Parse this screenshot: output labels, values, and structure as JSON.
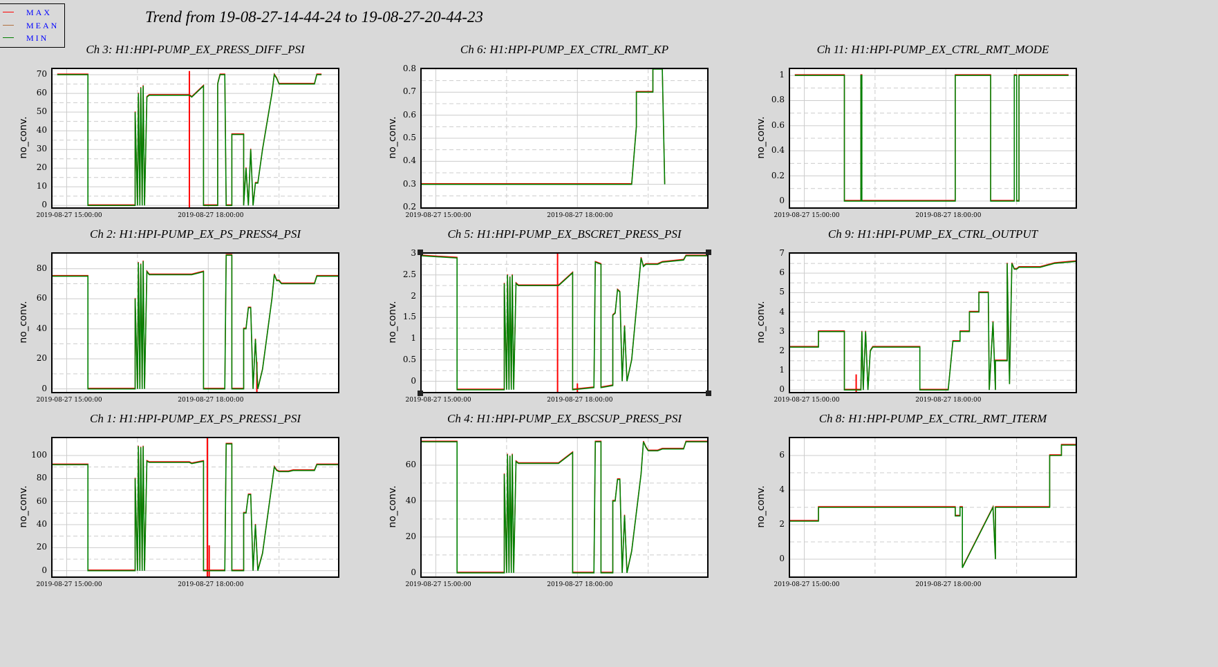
{
  "title": "Trend from 19-08-27-14-44-24 to 19-08-27-20-44-23",
  "legend": [
    {
      "label": "MAX",
      "color": "#ff0000"
    },
    {
      "label": "MEAN",
      "color": "#b0703f"
    },
    {
      "label": "MIN",
      "color": "#008000"
    }
  ],
  "colors": {
    "max": "#ff0000",
    "min": "#008000",
    "grid": "#cccccc",
    "background": "#d9d9d9"
  },
  "x_axis": {
    "start": "19-08-27-14-44-24",
    "end": "19-08-27-20-44-23",
    "tick_labels": [
      "2019-08-27 15:00:00",
      "2019-08-27 18:00:00"
    ],
    "tick_hours": [
      15.0,
      18.0
    ],
    "minor_hours": [
      16.5,
      19.5
    ],
    "range_hours": [
      14.7,
      20.75
    ]
  },
  "chart_data": [
    {
      "type": "line",
      "title": "Ch 3: H1:HPI-PUMP_EX_PRESS_DIFF_PSI",
      "ylabel": "no_conv.",
      "ylim": [
        -1,
        73
      ],
      "yticks": [
        0,
        10,
        20,
        30,
        40,
        50,
        60,
        70
      ],
      "ytick_labels": [
        "0",
        "10",
        "20",
        "30",
        "40",
        "50",
        "60",
        "70"
      ],
      "x": [
        14.8,
        15.45,
        15.45,
        16.45,
        16.45,
        16.5,
        16.52,
        16.55,
        16.57,
        16.6,
        16.62,
        16.65,
        16.7,
        16.75,
        17.6,
        17.65,
        17.9,
        17.9,
        18.2,
        18.2,
        18.25,
        18.35,
        18.38,
        18.5,
        18.5,
        18.5,
        18.75,
        18.75,
        18.8,
        18.85,
        18.9,
        18.95,
        19.0,
        19.05,
        19.15,
        19.35,
        19.4,
        19.45,
        19.5,
        19.55,
        19.7,
        19.8,
        20.25,
        20.3,
        20.4
      ],
      "y": [
        70,
        70,
        0,
        0,
        50,
        0,
        60,
        0,
        63,
        0,
        64,
        0,
        58,
        59,
        59,
        58,
        64,
        0,
        0,
        65,
        70,
        70,
        0,
        0,
        38,
        38,
        38,
        0,
        20,
        0,
        30,
        0,
        12,
        12,
        30,
        60,
        70,
        68,
        65,
        65,
        65,
        65,
        65,
        70,
        70
      ],
      "max_spikes": [
        [
          17.6,
          72
        ]
      ]
    },
    {
      "type": "line",
      "title": "Ch 6: H1:HPI-PUMP_EX_CTRL_RMT_KP",
      "ylabel": "no_conv.",
      "ylim": [
        0.2,
        0.8
      ],
      "yticks": [
        0.2,
        0.3,
        0.4,
        0.5,
        0.6,
        0.7,
        0.8
      ],
      "ytick_labels": [
        "0.2",
        "0.3",
        "0.4",
        "0.5",
        "0.6",
        "0.7",
        "0.8"
      ],
      "x": [
        14.7,
        15.0,
        16.0,
        18.0,
        19.15,
        19.25,
        19.25,
        19.6,
        19.6,
        19.8,
        19.85
      ],
      "y": [
        0.3,
        0.3,
        0.3,
        0.3,
        0.3,
        0.55,
        0.7,
        0.7,
        0.8,
        0.8,
        0.3
      ],
      "max_spikes": []
    },
    {
      "type": "line",
      "title": "Ch 11: H1:HPI-PUMP_EX_CTRL_RMT_MODE",
      "ylabel": "no_conv.",
      "ylim": [
        -0.05,
        1.05
      ],
      "yticks": [
        0,
        0.2,
        0.4,
        0.6,
        0.8,
        1
      ],
      "ytick_labels": [
        "0",
        "0.2",
        "0.4",
        "0.6",
        "0.8",
        "1"
      ],
      "x": [
        14.8,
        15.85,
        15.85,
        16.2,
        16.2,
        16.22,
        16.22,
        18.2,
        18.2,
        18.95,
        18.95,
        19.45,
        19.45,
        19.5,
        19.5,
        19.55,
        19.55,
        20.6
      ],
      "y": [
        1,
        1,
        0,
        0,
        1,
        1,
        0,
        0,
        1,
        1,
        0,
        0,
        1,
        1,
        0,
        0,
        1,
        1
      ],
      "max_spikes": []
    },
    {
      "type": "line",
      "title": "Ch 2: H1:HPI-PUMP_EX_PS_PRESS4_PSI",
      "ylabel": "no_conv.",
      "ylim": [
        -2,
        90
      ],
      "yticks": [
        0,
        20,
        40,
        60,
        80
      ],
      "ytick_labels": [
        "0",
        "20",
        "40",
        "60",
        "80"
      ],
      "x": [
        14.7,
        15.45,
        15.45,
        16.45,
        16.45,
        16.5,
        16.52,
        16.55,
        16.57,
        16.6,
        16.62,
        16.65,
        16.7,
        16.75,
        17.6,
        17.65,
        17.9,
        17.9,
        18.35,
        18.38,
        18.5,
        18.5,
        18.75,
        18.75,
        18.8,
        18.85,
        18.9,
        18.95,
        19.0,
        19.05,
        19.15,
        19.35,
        19.4,
        19.45,
        19.5,
        19.55,
        19.7,
        19.8,
        20.25,
        20.3,
        20.75
      ],
      "y": [
        75,
        75,
        0,
        0,
        60,
        0,
        84,
        0,
        83,
        0,
        85,
        0,
        78,
        76,
        76,
        76,
        78,
        0,
        0,
        89,
        89,
        0,
        0,
        40,
        40,
        54,
        54,
        0,
        33,
        0,
        13,
        60,
        76,
        72,
        72,
        70,
        70,
        70,
        70,
        75,
        75
      ],
      "max_spikes": [
        [
          19.03,
          18
        ]
      ]
    },
    {
      "type": "line",
      "title": "Ch 5: H1:HPI-PUMP_EX_BSCRET_PRESS_PSI",
      "ylabel": "no_conv.",
      "ylim": [
        -0.25,
        3.0
      ],
      "yticks": [
        0,
        0.5,
        1,
        1.5,
        2,
        2.5,
        3
      ],
      "ytick_labels": [
        "0",
        "0.5",
        "1",
        "1.5",
        "2",
        "2.5",
        "3"
      ],
      "x": [
        14.7,
        15.45,
        15.45,
        16.45,
        16.45,
        16.5,
        16.52,
        16.55,
        16.57,
        16.6,
        16.62,
        16.65,
        16.7,
        16.75,
        17.6,
        17.65,
        17.9,
        17.9,
        18.35,
        18.38,
        18.5,
        18.5,
        18.75,
        18.75,
        18.8,
        18.85,
        18.9,
        18.95,
        19.0,
        19.05,
        19.15,
        19.35,
        19.4,
        19.45,
        19.5,
        19.55,
        19.7,
        19.8,
        20.25,
        20.3,
        20.75
      ],
      "y": [
        2.95,
        2.9,
        -0.2,
        -0.2,
        2.3,
        -0.2,
        2.5,
        -0.2,
        2.45,
        -0.2,
        2.5,
        -0.2,
        2.3,
        2.25,
        2.25,
        2.3,
        2.55,
        -0.2,
        -0.15,
        2.8,
        2.75,
        -0.15,
        -0.1,
        1.55,
        1.6,
        2.15,
        2.1,
        0.0,
        1.3,
        0.0,
        0.5,
        2.9,
        2.7,
        2.75,
        2.75,
        2.75,
        2.75,
        2.8,
        2.85,
        2.95,
        2.95
      ],
      "max_spikes": [
        [
          17.58,
          3.0
        ],
        [
          18.0,
          -0.05
        ]
      ]
    },
    {
      "type": "line",
      "title": "Ch 9: H1:HPI-PUMP_EX_CTRL_OUTPUT",
      "ylabel": "no_conv.",
      "ylim": [
        -0.1,
        7
      ],
      "yticks": [
        0,
        1,
        2,
        3,
        4,
        5,
        6,
        7
      ],
      "ytick_labels": [
        "0",
        "1",
        "2",
        "3",
        "4",
        "5",
        "6",
        "7"
      ],
      "x": [
        14.7,
        15.0,
        15.3,
        15.3,
        15.85,
        15.85,
        16.2,
        16.22,
        16.25,
        16.3,
        16.35,
        16.4,
        16.45,
        16.5,
        16.6,
        17.45,
        17.45,
        18.0,
        18.05,
        18.15,
        18.2,
        18.25,
        18.3,
        18.3,
        18.5,
        18.5,
        18.7,
        18.7,
        18.9,
        18.92,
        19.0,
        19.05,
        19.05,
        19.3,
        19.3,
        19.35,
        19.4,
        19.45,
        19.5,
        19.55,
        20.0,
        20.3,
        20.75
      ],
      "y": [
        2.2,
        2.2,
        2.2,
        3.0,
        3.0,
        0.0,
        0.0,
        3.0,
        0.0,
        3.0,
        0.0,
        2.0,
        2.2,
        2.2,
        2.2,
        2.2,
        0.0,
        0.0,
        0.0,
        2.5,
        2.5,
        2.5,
        2.5,
        3.0,
        3.0,
        4.0,
        4.0,
        5.0,
        5.0,
        0.0,
        3.5,
        0.0,
        1.5,
        1.5,
        6.5,
        0.3,
        6.5,
        6.2,
        6.2,
        6.3,
        6.3,
        6.5,
        6.6
      ],
      "max_spikes": [
        [
          16.1,
          0.8
        ]
      ]
    },
    {
      "type": "line",
      "title": "Ch 1: H1:HPI-PUMP_EX_PS_PRESS1_PSI",
      "ylabel": "no_conv.",
      "ylim": [
        -5,
        115
      ],
      "yticks": [
        0,
        20,
        40,
        60,
        80,
        100
      ],
      "ytick_labels": [
        "0",
        "20",
        "40",
        "60",
        "80",
        "100"
      ],
      "x": [
        14.7,
        15.45,
        15.45,
        16.45,
        16.45,
        16.5,
        16.52,
        16.55,
        16.57,
        16.6,
        16.62,
        16.65,
        16.7,
        16.75,
        17.6,
        17.65,
        17.9,
        17.9,
        18.35,
        18.38,
        18.5,
        18.5,
        18.75,
        18.75,
        18.8,
        18.85,
        18.9,
        18.95,
        19.0,
        19.05,
        19.15,
        19.35,
        19.4,
        19.45,
        19.5,
        19.55,
        19.7,
        19.8,
        20.25,
        20.3,
        20.75
      ],
      "y": [
        92,
        92,
        0,
        0,
        80,
        0,
        108,
        0,
        107,
        0,
        108,
        0,
        95,
        94,
        94,
        93,
        95,
        0,
        0,
        110,
        110,
        0,
        0,
        50,
        50,
        66,
        66,
        0,
        40,
        0,
        15,
        75,
        90,
        87,
        86,
        86,
        86,
        87,
        87,
        92,
        92
      ],
      "max_spikes": [
        [
          17.98,
          115
        ],
        [
          18.02,
          22
        ]
      ]
    },
    {
      "type": "line",
      "title": "Ch 4: H1:HPI-PUMP_EX_BSCSUP_PRESS_PSI",
      "ylabel": "no_conv.",
      "ylim": [
        -2,
        75
      ],
      "yticks": [
        0,
        20,
        40,
        60
      ],
      "ytick_labels": [
        "0",
        "20",
        "40",
        "60"
      ],
      "x": [
        14.7,
        15.45,
        15.45,
        16.45,
        16.45,
        16.5,
        16.52,
        16.55,
        16.57,
        16.6,
        16.62,
        16.65,
        16.7,
        16.75,
        17.6,
        17.65,
        17.9,
        17.9,
        18.35,
        18.38,
        18.5,
        18.5,
        18.75,
        18.75,
        18.8,
        18.85,
        18.9,
        18.95,
        19.0,
        19.05,
        19.15,
        19.35,
        19.4,
        19.45,
        19.5,
        19.55,
        19.7,
        19.8,
        20.25,
        20.3,
        20.75
      ],
      "y": [
        73,
        73,
        0,
        0,
        55,
        0,
        66,
        0,
        65,
        0,
        66,
        0,
        62,
        61,
        61,
        62,
        67,
        0,
        0,
        73,
        73,
        0,
        0,
        40,
        40,
        52,
        52,
        0,
        32,
        0,
        12,
        55,
        73,
        70,
        68,
        68,
        68,
        69,
        69,
        73,
        73
      ],
      "max_spikes": []
    },
    {
      "type": "line",
      "title": "Ch 8: H1:HPI-PUMP_EX_CTRL_RMT_ITERM",
      "ylabel": "no_conv.",
      "ylim": [
        -1,
        7
      ],
      "yticks": [
        0,
        2,
        4,
        6
      ],
      "ytick_labels": [
        "0",
        "2",
        "4",
        "6"
      ],
      "x": [
        14.7,
        15.0,
        15.3,
        15.3,
        16.0,
        17.0,
        18.0,
        18.2,
        18.2,
        18.3,
        18.3,
        18.35,
        18.35,
        19.0,
        19.0,
        19.05,
        19.05,
        19.5,
        20.2,
        20.2,
        20.45,
        20.45,
        20.75
      ],
      "y": [
        2.2,
        2.2,
        2.2,
        3.0,
        3.0,
        3.0,
        3.0,
        3.0,
        2.5,
        2.5,
        3.0,
        3.0,
        -0.5,
        3.0,
        3.0,
        0.0,
        3.0,
        3.0,
        3.0,
        6.0,
        6.0,
        6.6,
        6.6
      ],
      "max_spikes": []
    }
  ]
}
